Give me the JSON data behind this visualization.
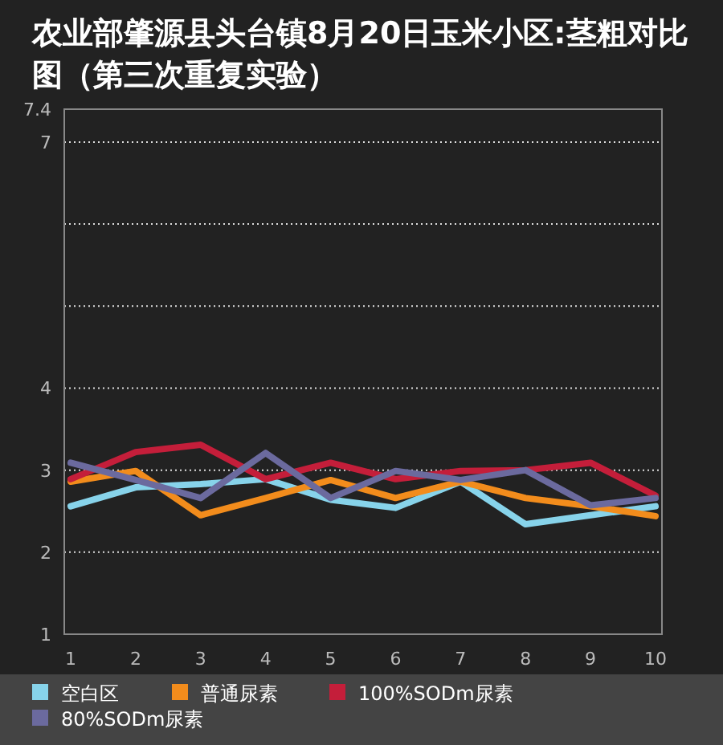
{
  "chart_data": {
    "type": "line",
    "title": "农业部肇源县头台镇8月20日玉米小区:茎粗对比图（第三次重复实验）",
    "categories": [
      "1",
      "2",
      "3",
      "4",
      "5",
      "6",
      "7",
      "8",
      "9",
      "10"
    ],
    "series": [
      {
        "name": "空白区",
        "color": "#87d3ea",
        "values": [
          2.56,
          2.79,
          2.83,
          2.89,
          2.64,
          2.54,
          2.86,
          2.34,
          2.45,
          2.56
        ]
      },
      {
        "name": "普通尿素",
        "color": "#f28c1c",
        "values": [
          2.86,
          2.99,
          2.45,
          2.66,
          2.88,
          2.66,
          2.86,
          2.66,
          2.56,
          2.44
        ]
      },
      {
        "name": "100%SODm尿素",
        "color": "#c41e3a",
        "values": [
          2.89,
          3.22,
          3.31,
          2.89,
          3.09,
          2.89,
          2.99,
          3.0,
          3.09,
          2.69
        ]
      },
      {
        "name": "80%SODm尿素",
        "color": "#6b6a9e",
        "values": [
          3.09,
          2.88,
          2.66,
          3.21,
          2.66,
          2.99,
          2.88,
          3.0,
          2.57,
          2.66
        ]
      }
    ],
    "ylim": [
      1,
      7.4
    ],
    "yticks": [
      1,
      2,
      3,
      4,
      {
        "value": 5,
        "label": null
      },
      {
        "value": 6,
        "label": null
      },
      7,
      7.4
    ],
    "grid": "y",
    "legend": "bottom",
    "marker": "none",
    "line_style": "solid"
  }
}
